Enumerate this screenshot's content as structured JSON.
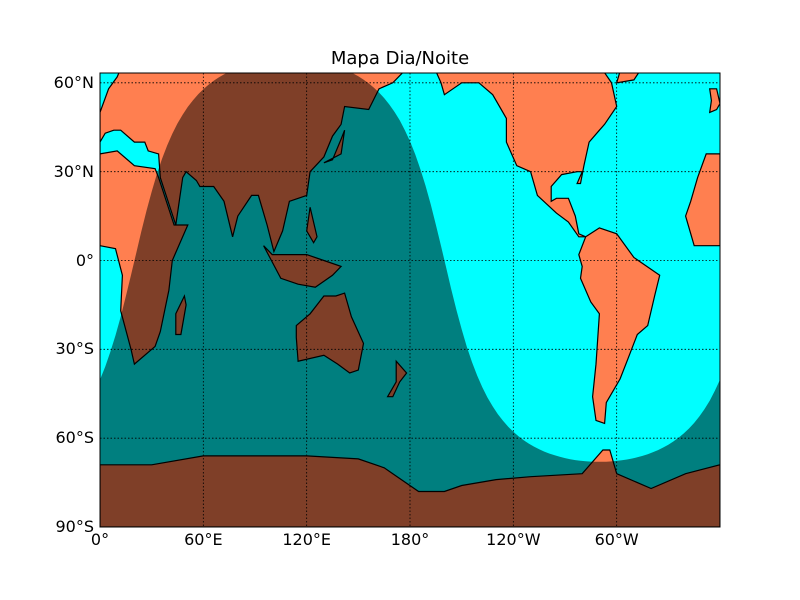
{
  "map": {
    "title": "Mapa Dia/Noite",
    "projection": "cylindrical (plate carrée), central meridian 180°",
    "colors": {
      "ocean": "#00FFFF",
      "land": "#FF7F50",
      "night_ocean": "#008080",
      "night_land": "#7F3F27",
      "coastline": "#000000",
      "grid": "#000000"
    },
    "lon_range": [
      0,
      360
    ],
    "lat_range": [
      -90,
      90
    ],
    "parallels": [
      {
        "lat": 60,
        "label": "60°N"
      },
      {
        "lat": 30,
        "label": "30°N"
      },
      {
        "lat": 0,
        "label": "0°"
      },
      {
        "lat": -30,
        "label": "30°S"
      },
      {
        "lat": -60,
        "label": "60°S"
      },
      {
        "lat": -90,
        "label": "90°S"
      }
    ],
    "meridians": [
      {
        "lon": 0,
        "label": "0°"
      },
      {
        "lon": 60,
        "label": "60°E"
      },
      {
        "lon": 120,
        "label": "120°E"
      },
      {
        "lon": 180,
        "label": "180°"
      },
      {
        "lon": 240,
        "label": "120°W"
      },
      {
        "lon": 300,
        "label": "60°W"
      }
    ],
    "terminator": {
      "night_center_lon": 110,
      "max_night_lat": 68,
      "min_lat_on_day_side": -67,
      "night_hemisphere_pole": "north-and-south-cap",
      "note_on_shape": "night covers Asia/Australia/Antarctica; day covers the Americas and Pacific"
    }
  }
}
